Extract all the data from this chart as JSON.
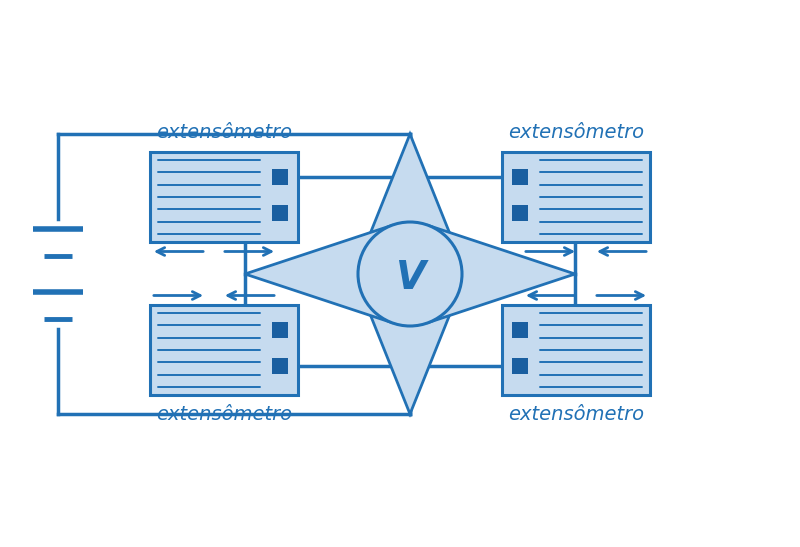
{
  "blue": "#2171b5",
  "blue_light": "#c6dbef",
  "blue_dark": "#1a5fa0",
  "bg": "#ffffff",
  "label": "extensômetro",
  "voltmeter_label": "V",
  "fig_w": 8.0,
  "fig_h": 5.47,
  "dpi": 100
}
